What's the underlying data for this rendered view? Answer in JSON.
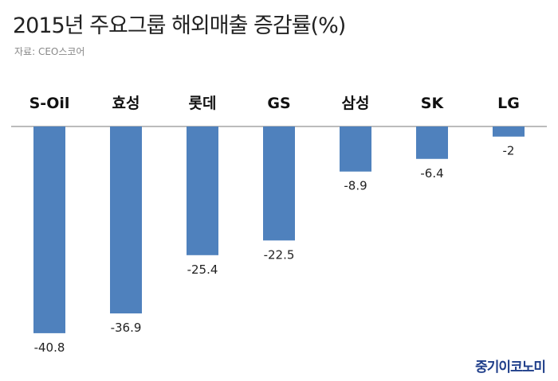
{
  "header": {
    "title": "2015년 주요그룹 해외매출 증감률(%)",
    "source": "자료: CEO스코어"
  },
  "watermark": "중기이코노미",
  "chart_data": {
    "type": "bar",
    "title": "2015년 주요그룹 해외매출 증감률(%)",
    "xlabel": "",
    "ylabel": "",
    "categories": [
      "S-Oil",
      "효성",
      "롯데",
      "GS",
      "삼성",
      "SK",
      "LG"
    ],
    "values": [
      -40.8,
      -36.9,
      -25.4,
      -22.5,
      -8.9,
      -6.4,
      -2
    ],
    "value_labels": [
      "-40.8",
      "-36.9",
      "-25.4",
      "-22.5",
      "-8.9",
      "-6.4",
      "-2"
    ],
    "ylim": [
      -45,
      0
    ],
    "grid": false,
    "legend": "none",
    "category_axis_position": "top",
    "bar_color": "#4f81bd",
    "axis_color": "#a6a6a6"
  }
}
